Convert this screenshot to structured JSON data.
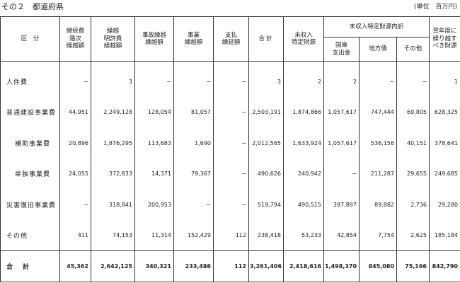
{
  "caption": "その２　都道府県",
  "unit": "(単位　百万円)",
  "headers": {
    "kubun": "区　分",
    "keizoku1": "継続費",
    "keizoku2": "逓次",
    "keizoku3": "繰越額",
    "meikyo1": "繰越",
    "meikyo2": "明許費",
    "meikyo3": "繰越額",
    "jiko1": "事故繰越",
    "jiko2": "繰越額",
    "jigyo1": "事業",
    "jigyo2": "繰越額",
    "shiharai1": "支払",
    "shiharai2": "繰延額",
    "goukei": "合計",
    "mishuu1": "未収入",
    "mishuu2": "特定財源",
    "uchiwake": "未収入特定財源内訳",
    "kokko1": "国庫",
    "kokko2": "支出金",
    "chihosai": "地方債",
    "sonota": "その他",
    "yokunen1": "翌年度に",
    "yokunen2": "繰り越す",
    "yokunen3": "べき財源"
  },
  "rows": [
    {
      "label": "人件費",
      "indent": false,
      "values": [
        "−",
        "3",
        "−",
        "−",
        "−",
        "3",
        "2",
        "2",
        "−",
        "−",
        "1"
      ]
    },
    {
      "label": "普通建設事業費",
      "indent": false,
      "values": [
        "44,951",
        "2,249,128",
        "128,054",
        "81,057",
        "−",
        "2,503,191",
        "1,874,866",
        "1,057,617",
        "747,444",
        "69,805",
        "628,325"
      ]
    },
    {
      "label": "補助事業費",
      "indent": true,
      "values": [
        "20,896",
        "1,876,295",
        "113,683",
        "1,690",
        "−",
        "2,012,565",
        "1,633,924",
        "1,057,617",
        "536,156",
        "40,151",
        "378,641"
      ]
    },
    {
      "label": "単独事業費",
      "indent": true,
      "values": [
        "24,055",
        "372,833",
        "14,371",
        "79,367",
        "−",
        "490,626",
        "240,942",
        "−",
        "211,287",
        "29,655",
        "249,685"
      ]
    },
    {
      "label": "災害復旧事業費",
      "indent": false,
      "values": [
        "−",
        "318,841",
        "200,953",
        "−",
        "−",
        "519,794",
        "490,515",
        "397,897",
        "89,882",
        "2,736",
        "29,280"
      ]
    },
    {
      "label": "その他",
      "indent": false,
      "values": [
        "411",
        "74,153",
        "11,314",
        "152,429",
        "112",
        "238,418",
        "53,233",
        "42,854",
        "7,754",
        "2,625",
        "185,184"
      ]
    }
  ],
  "total": {
    "label": "合計",
    "values": [
      "45,362",
      "2,642,125",
      "340,321",
      "233,486",
      "112",
      "3,261,406",
      "2,418,616",
      "1,498,370",
      "845,080",
      "75,166",
      "842,790"
    ]
  }
}
